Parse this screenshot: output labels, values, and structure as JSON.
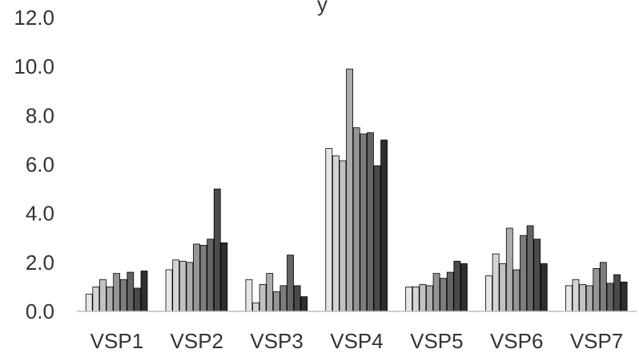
{
  "chart_data": {
    "type": "bar",
    "title": "",
    "title_visible_fragment": "y",
    "xlabel": "",
    "ylabel": "",
    "ylim": [
      0,
      12
    ],
    "yticks": [
      "0.0",
      "2.0",
      "4.0",
      "6.0",
      "8.0",
      "10.0",
      "12.0"
    ],
    "grid": false,
    "legend": "none",
    "categories": [
      "VSP1",
      "VSP2",
      "VSP3",
      "VSP4",
      "VSP5",
      "VSP6",
      "VSP7"
    ],
    "series": [
      {
        "color": "#e6e6e6",
        "values": [
          0.7,
          1.7,
          1.3,
          6.65,
          1.0,
          1.45,
          1.05
        ]
      },
      {
        "color": "#d4d4d4",
        "values": [
          1.0,
          2.1,
          0.35,
          6.35,
          1.0,
          2.35,
          1.3
        ]
      },
      {
        "color": "#c2c2c2",
        "values": [
          1.3,
          2.05,
          1.1,
          6.15,
          1.1,
          1.95,
          1.1
        ]
      },
      {
        "color": "#acacac",
        "values": [
          1.0,
          2.0,
          1.55,
          9.9,
          1.05,
          3.4,
          1.05
        ]
      },
      {
        "color": "#959595",
        "values": [
          1.55,
          2.75,
          0.8,
          7.5,
          1.55,
          1.7,
          1.75
        ]
      },
      {
        "color": "#7d7d7d",
        "values": [
          1.3,
          2.7,
          1.05,
          7.25,
          1.35,
          3.1,
          2.0
        ]
      },
      {
        "color": "#646464",
        "values": [
          1.6,
          2.95,
          2.3,
          7.3,
          1.6,
          3.5,
          1.15
        ]
      },
      {
        "color": "#4a4a4a",
        "values": [
          0.95,
          5.0,
          1.05,
          5.95,
          2.05,
          2.95,
          1.5
        ]
      },
      {
        "color": "#2e2e2e",
        "values": [
          1.65,
          2.8,
          0.6,
          7.0,
          1.95,
          1.95,
          1.2
        ]
      }
    ],
    "colors": {
      "axis": "#bfbfbf",
      "bar_stroke": "#000000",
      "text": "#333333"
    }
  }
}
